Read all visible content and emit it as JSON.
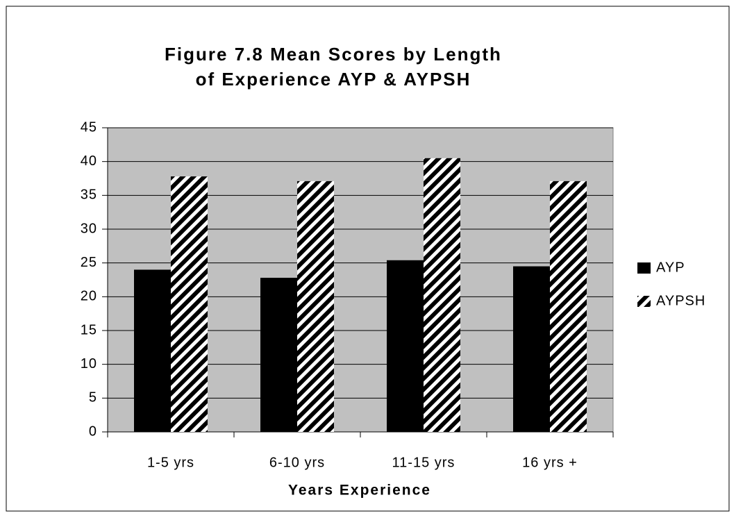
{
  "chart_data": {
    "type": "bar",
    "title": [
      "Figure 7.8 Mean Scores by Length",
      "of Experience AYP & AYPSH"
    ],
    "x_label": "Years Experience",
    "categories": [
      "1-5 yrs",
      "6-10 yrs",
      "11-15 yrs",
      "16 yrs +"
    ],
    "series": [
      {
        "name": "AYP",
        "color": "#000000",
        "values": [
          24,
          22.8,
          25.4,
          24.5
        ]
      },
      {
        "name": "AYPSH",
        "color": "#000000",
        "pattern": "diagonal-stripes",
        "values": [
          37.8,
          37.1,
          40.5,
          37.1
        ]
      }
    ],
    "ylim": [
      0,
      45
    ],
    "yticks": [
      0,
      5,
      10,
      15,
      20,
      25,
      30,
      35,
      40,
      45
    ],
    "grid": true,
    "plot_background": "#c0c0c0",
    "legend": "right"
  }
}
